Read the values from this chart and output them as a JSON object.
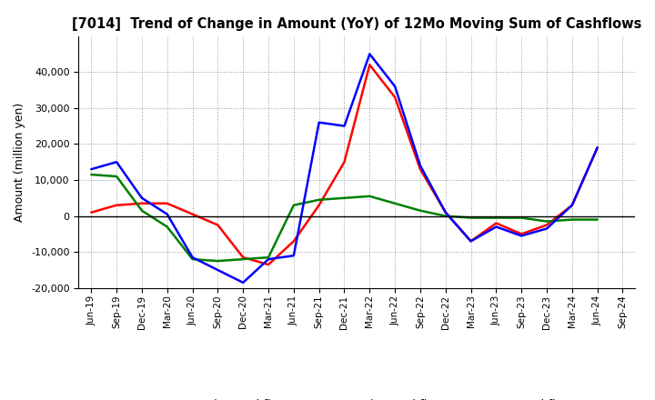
{
  "title": "[7014]  Trend of Change in Amount (YoY) of 12Mo Moving Sum of Cashflows",
  "ylabel": "Amount (million yen)",
  "x_labels": [
    "Jun-19",
    "Sep-19",
    "Dec-19",
    "Mar-20",
    "Jun-20",
    "Sep-20",
    "Dec-20",
    "Mar-21",
    "Jun-21",
    "Sep-21",
    "Dec-21",
    "Mar-22",
    "Jun-22",
    "Sep-22",
    "Dec-22",
    "Mar-23",
    "Jun-23",
    "Sep-23",
    "Dec-23",
    "Mar-24",
    "Jun-24",
    "Sep-24"
  ],
  "operating": [
    1000,
    3000,
    3500,
    3500,
    500,
    -2500,
    -11500,
    -13500,
    -7000,
    3000,
    15000,
    42000,
    33000,
    13000,
    1000,
    -7000,
    -2000,
    -5000,
    -2500,
    3000,
    19000,
    null
  ],
  "investing": [
    11500,
    11000,
    1500,
    -3000,
    -12000,
    -12500,
    -12000,
    -11500,
    3000,
    4500,
    5000,
    5500,
    3500,
    1500,
    0,
    -500,
    -500,
    -500,
    -1500,
    -1000,
    -1000,
    null
  ],
  "free": [
    13000,
    15000,
    5000,
    500,
    -11500,
    -15000,
    -18500,
    -12000,
    -11000,
    26000,
    25000,
    45000,
    36000,
    14000,
    1000,
    -7000,
    -3000,
    -5500,
    -3500,
    3000,
    19000,
    null
  ],
  "operating_color": "#ff0000",
  "investing_color": "#008000",
  "free_color": "#0000ff",
  "ylim": [
    -20000,
    50000
  ],
  "yticks": [
    -20000,
    -10000,
    0,
    10000,
    20000,
    30000,
    40000
  ],
  "background_color": "#ffffff",
  "grid_color": "#999999"
}
